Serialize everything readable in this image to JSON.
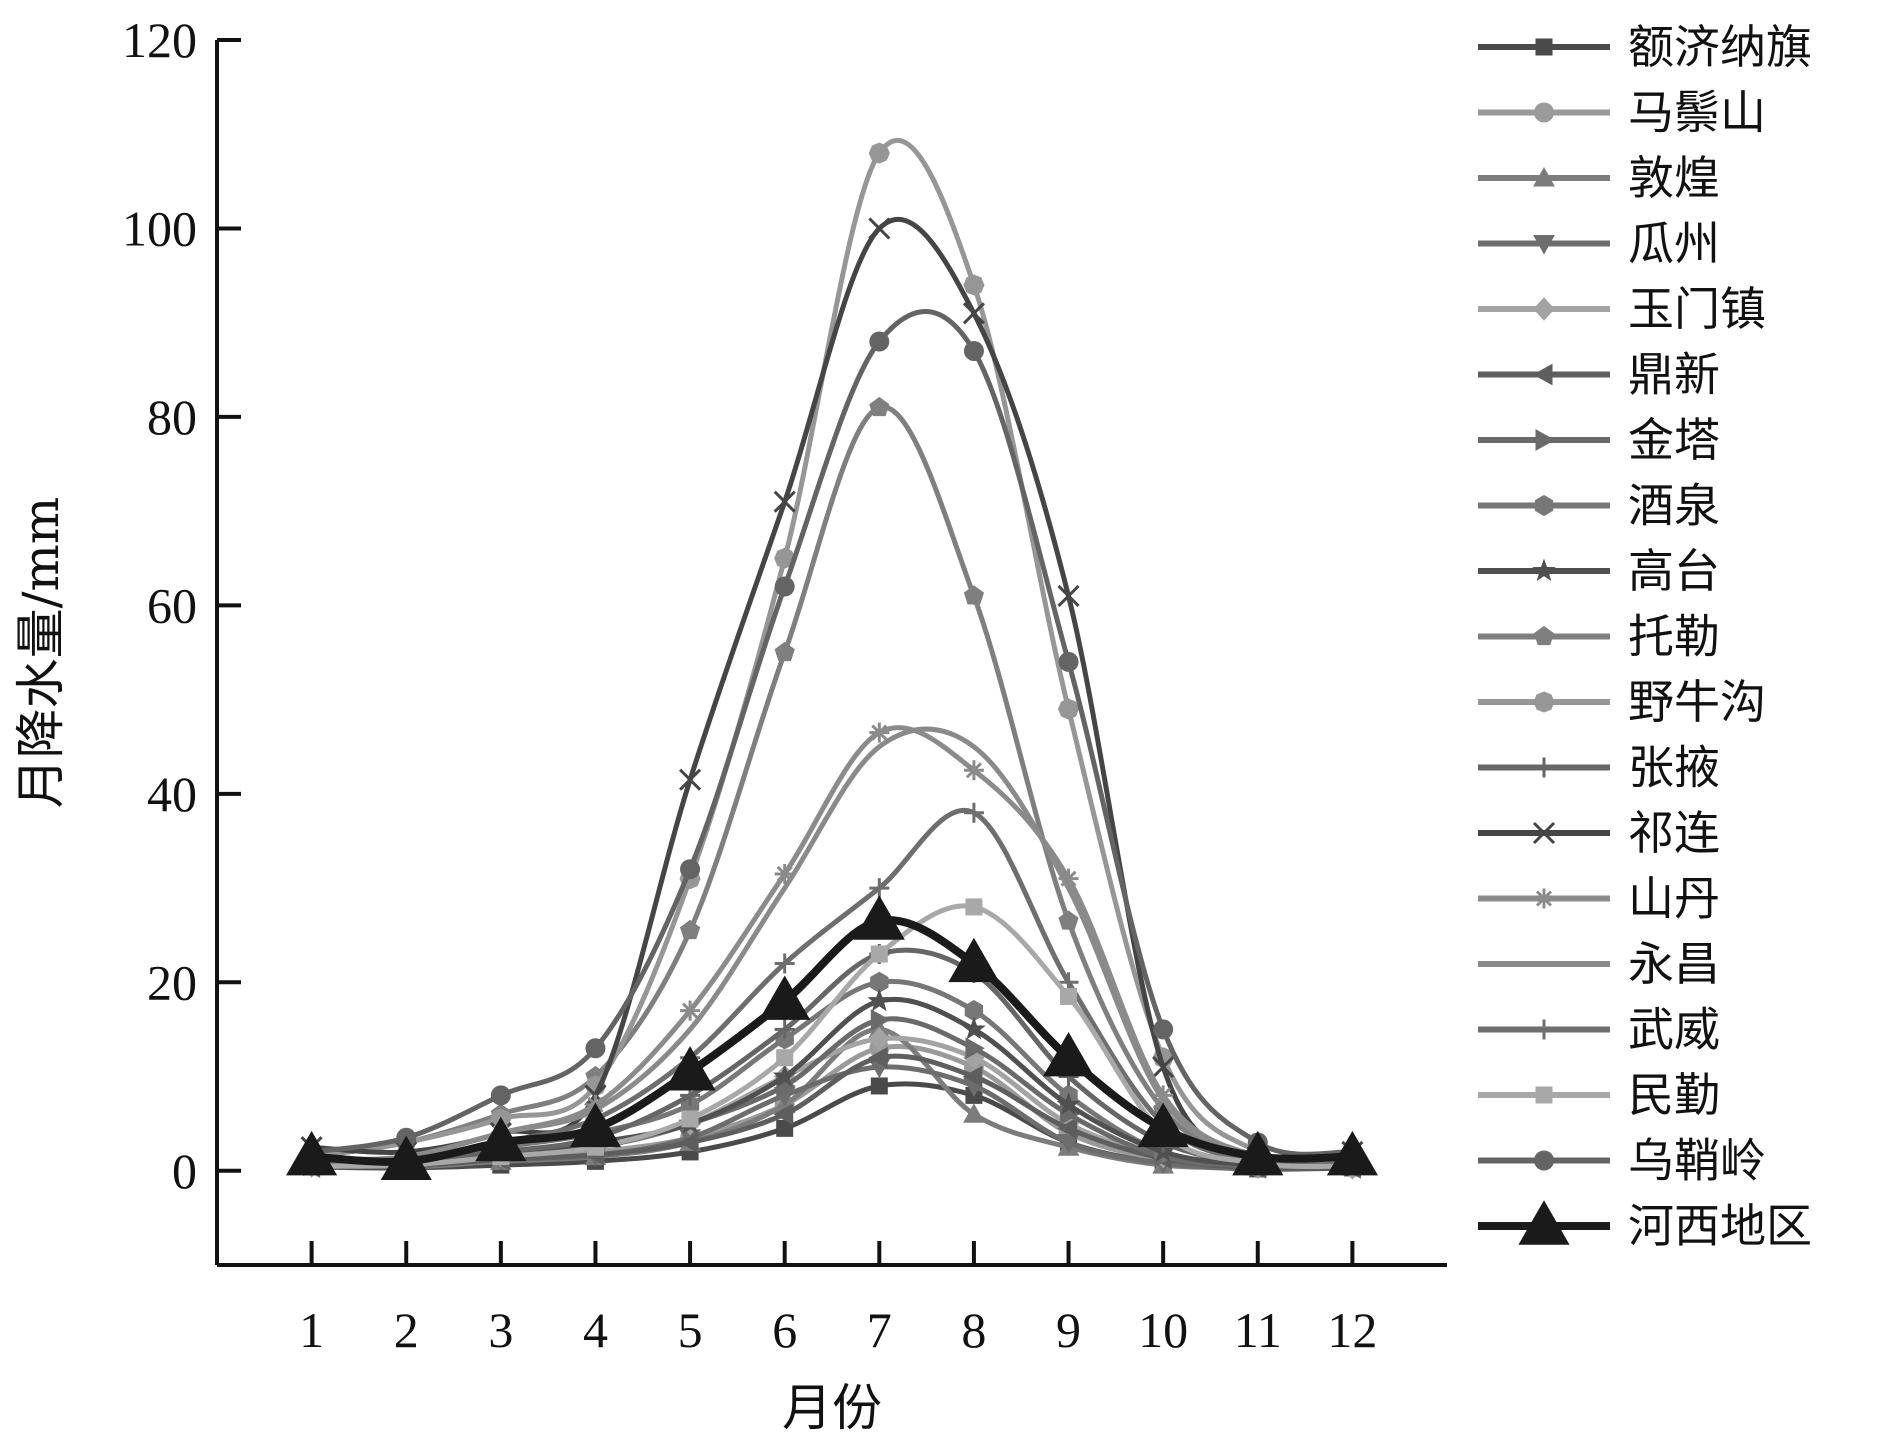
{
  "chart_data": {
    "type": "line",
    "title": "",
    "xlabel": "月份",
    "ylabel": "月降水量/mm",
    "x": [
      1,
      2,
      3,
      4,
      5,
      6,
      7,
      8,
      9,
      10,
      11,
      12
    ],
    "x_tick_labels": [
      "1",
      "2",
      "3",
      "4",
      "5",
      "6",
      "7",
      "8",
      "9",
      "10",
      "11",
      "12"
    ],
    "y_ticks": [
      0,
      20,
      40,
      60,
      80,
      100,
      120
    ],
    "y_tick_labels": [
      "0",
      "20",
      "40",
      "60",
      "80",
      "100",
      "120"
    ],
    "xlim": [
      0,
      13
    ],
    "ylim": [
      -10,
      120
    ],
    "grid": false,
    "legend_position": "right",
    "smooth": true,
    "series": [
      {
        "name": "额济纳旗",
        "marker": "square",
        "color": "#4a4a4a",
        "values": [
          0.4,
          0.3,
          0.6,
          1.0,
          2.0,
          4.5,
          9.0,
          8.0,
          3.0,
          0.8,
          0.2,
          0.3
        ]
      },
      {
        "name": "马鬃山",
        "marker": "circle",
        "color": "#9a9a9a",
        "values": [
          0.7,
          0.6,
          1.2,
          2.0,
          3.5,
          7.0,
          13.0,
          11.0,
          4.0,
          1.2,
          0.4,
          0.5
        ]
      },
      {
        "name": "敦煌",
        "marker": "triangle-up",
        "color": "#7c7c7c",
        "values": [
          0.8,
          0.4,
          1.0,
          1.5,
          3.0,
          7.0,
          15.0,
          6.0,
          2.5,
          0.6,
          0.4,
          0.5
        ]
      },
      {
        "name": "瓜州",
        "marker": "triangle-down",
        "color": "#6d6d6d",
        "values": [
          1.0,
          0.5,
          1.2,
          1.6,
          3.5,
          8.0,
          11.0,
          9.0,
          3.0,
          0.8,
          0.3,
          0.6
        ]
      },
      {
        "name": "玉门镇",
        "marker": "diamond",
        "color": "#a3a3a3",
        "values": [
          0.5,
          0.6,
          1.6,
          2.5,
          5.0,
          10.0,
          14.0,
          12.0,
          5.0,
          1.5,
          0.5,
          0.3
        ]
      },
      {
        "name": "鼎新",
        "marker": "triangle-left",
        "color": "#5e5e5e",
        "values": [
          0.4,
          0.5,
          1.2,
          1.7,
          3.0,
          6.0,
          12.0,
          10.0,
          4.5,
          1.3,
          0.3,
          0.3
        ]
      },
      {
        "name": "金塔",
        "marker": "triangle-right",
        "color": "#6a6a6a",
        "values": [
          0.6,
          0.6,
          1.6,
          2.5,
          5.0,
          9.0,
          16.0,
          13.0,
          6.0,
          1.5,
          0.5,
          0.6
        ]
      },
      {
        "name": "酒泉",
        "marker": "hexagon",
        "color": "#777777",
        "values": [
          1.0,
          1.0,
          2.5,
          4.0,
          7.0,
          14.0,
          20.0,
          17.0,
          8.0,
          2.0,
          0.8,
          0.7
        ]
      },
      {
        "name": "高台",
        "marker": "star",
        "color": "#505050",
        "values": [
          0.8,
          0.7,
          1.8,
          3.0,
          5.0,
          10.0,
          18.0,
          15.0,
          7.0,
          2.0,
          0.6,
          0.5
        ]
      },
      {
        "name": "托勒",
        "marker": "pentagon",
        "color": "#7f7f7f",
        "values": [
          1.5,
          3.0,
          6.0,
          10.0,
          25.5,
          55.0,
          81.0,
          61.0,
          26.5,
          6.5,
          1.5,
          1.0
        ]
      },
      {
        "name": "野牛沟",
        "marker": "octagon",
        "color": "#969696",
        "values": [
          1.5,
          3.0,
          5.5,
          9.0,
          31.0,
          65.0,
          108.0,
          94.0,
          49.0,
          12.0,
          2.0,
          1.0
        ]
      },
      {
        "name": "张掖",
        "marker": "plus",
        "color": "#666666",
        "values": [
          0.8,
          0.9,
          2.0,
          3.5,
          8.0,
          15.0,
          23.0,
          21.0,
          10.0,
          3.0,
          0.8,
          0.6
        ]
      },
      {
        "name": "祁连",
        "marker": "x",
        "color": "#454545",
        "values": [
          2.5,
          2.0,
          4.0,
          8.0,
          41.5,
          71.0,
          100.0,
          91.0,
          61.0,
          11.0,
          1.5,
          2.0
        ]
      },
      {
        "name": "山丹",
        "marker": "asterisk",
        "color": "#8b8b8b",
        "values": [
          1.0,
          1.5,
          4.0,
          7.0,
          17.0,
          31.5,
          46.5,
          42.5,
          31.0,
          8.0,
          1.5,
          1.0
        ]
      },
      {
        "name": "永昌",
        "marker": "none",
        "color": "#8a8a8a",
        "values": [
          1.2,
          1.5,
          4.0,
          6.5,
          15.0,
          30.0,
          45.0,
          45.0,
          30.0,
          7.5,
          1.5,
          1.0
        ]
      },
      {
        "name": "武威",
        "marker": "plus",
        "color": "#6e6e6e",
        "values": [
          0.8,
          1.2,
          3.0,
          5.5,
          12.0,
          22.0,
          30.0,
          38.0,
          20.0,
          5.0,
          1.0,
          0.7
        ]
      },
      {
        "name": "民勤",
        "marker": "square",
        "color": "#a8a8a8",
        "values": [
          0.5,
          0.6,
          1.5,
          2.5,
          5.5,
          12.0,
          23.0,
          28.0,
          18.5,
          4.0,
          0.8,
          0.5
        ]
      },
      {
        "name": "乌鞘岭",
        "marker": "circle",
        "color": "#646464",
        "values": [
          2.0,
          3.5,
          8.0,
          13.0,
          32.0,
          62.0,
          88.0,
          87.0,
          54.0,
          15.0,
          3.0,
          2.0
        ]
      },
      {
        "name": "河西地区",
        "marker": "triangle-up-large",
        "color": "#1a1a1a",
        "values": [
          1.5,
          1.0,
          3.0,
          4.5,
          10.5,
          18.0,
          26.5,
          22.0,
          12.0,
          4.5,
          1.5,
          1.5
        ]
      }
    ]
  }
}
